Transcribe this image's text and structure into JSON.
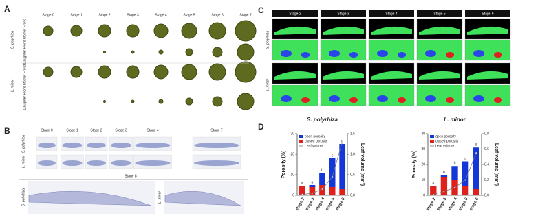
{
  "panel_A": {
    "label": "A",
    "stages": [
      "Stage 0",
      "Stage 1",
      "Stage 2",
      "Stage 3",
      "Stage 4",
      "Stage 5",
      "Stage 6",
      "Stage 7"
    ],
    "rows": [
      {
        "species": "S. polyrhiza",
        "fronds": [
          "Mother Frond",
          "Daughter Frond"
        ]
      },
      {
        "species": "L. minor",
        "fronds": [
          "Mother Frond",
          "Daughter Frond"
        ]
      }
    ]
  },
  "panel_B": {
    "label": "B",
    "stages": [
      "Stage 0",
      "Stage 1",
      "Stage 2",
      "Stage 3",
      "Stage 4",
      "Stage 7"
    ],
    "species": [
      "S. polyrhiza",
      "L. minor"
    ],
    "bottom_stage": "Stage 8"
  },
  "panel_C": {
    "label": "C",
    "stages": [
      "Stage 2",
      "Stage 3",
      "Stage 4",
      "Stage 5",
      "Stage 6"
    ],
    "species": [
      "S. polyrhiza",
      "L. minor"
    ]
  },
  "panel_D": {
    "label": "D"
  },
  "chart_data": [
    {
      "type": "bar",
      "title": "S. polyrhiza",
      "ylabel": "Porosity (%)",
      "y2label": "Leaf volume (mm³)",
      "stacked": true,
      "categories": [
        "stage 2",
        "stage 3",
        "stage 4",
        "stage 5",
        "stage 6"
      ],
      "series": [
        {
          "name": "open porosity",
          "color": "#1438d8",
          "values": [
            0,
            1,
            6,
            14,
            22
          ]
        },
        {
          "name": "closed porosity",
          "color": "#e0201b",
          "values": [
            4.5,
            4,
            5,
            4,
            3
          ]
        },
        {
          "name": "Leaf volume",
          "color": "#bbbbbb",
          "axis": "y2",
          "values": [
            0.02,
            0.05,
            0.15,
            0.45,
            1.3
          ]
        }
      ],
      "significance_labels": [
        "a",
        "a",
        "b",
        "c",
        "d"
      ],
      "ylim": [
        0,
        30
      ],
      "yticks": [
        0,
        10,
        20,
        30
      ],
      "y2lim": [
        0,
        1.5
      ],
      "y2ticks": [
        {
          "value": 0,
          "label": "0.0"
        },
        0.5,
        {
          "value": 1,
          "label": "1.0"
        },
        1.5
      ]
    },
    {
      "type": "bar",
      "title": "L. minor",
      "ylabel": "Porosity (%)",
      "y2label": "Leaf volume (mm³)",
      "stacked": true,
      "categories": [
        "stage 2",
        "stage 3",
        "stage 4",
        "stage 5",
        "stage 6"
      ],
      "series": [
        {
          "name": "open porosity",
          "color": "#1438d8",
          "values": [
            0,
            1,
            9,
            16,
            27
          ]
        },
        {
          "name": "closed porosity",
          "color": "#e0201b",
          "values": [
            6,
            12,
            10,
            6,
            4
          ]
        },
        {
          "name": "Leaf volume",
          "color": "#bbbbbb",
          "axis": "y2",
          "values": [
            0.01,
            0.05,
            0.1,
            0.2,
            0.55
          ]
        }
      ],
      "significance_labels": [
        "a",
        "b",
        "b",
        "c",
        "d"
      ],
      "ylim": [
        0,
        40
      ],
      "yticks": [
        0,
        10,
        20,
        30,
        40
      ],
      "y2lim": [
        0,
        0.8
      ],
      "y2ticks": [
        {
          "value": 0,
          "label": "0.0"
        },
        0.2,
        0.4,
        0.6,
        0.8
      ]
    }
  ]
}
